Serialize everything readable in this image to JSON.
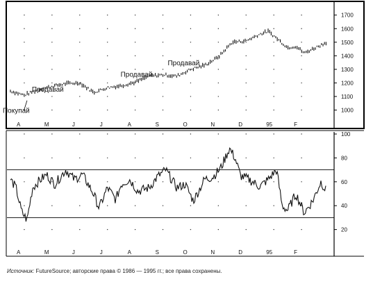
{
  "chart_data": [
    {
      "type": "bar",
      "style": "price-bars",
      "y_ticks": [
        "1700",
        "1600",
        "1500",
        "1400",
        "1300",
        "1200",
        "1100",
        "1000"
      ],
      "y_tick_values": [
        1700,
        1600,
        1500,
        1400,
        1300,
        1200,
        1100,
        1000
      ],
      "ylim": [
        900,
        1760
      ],
      "x_labels": [
        "A",
        "M",
        "J",
        "J",
        "A",
        "S",
        "O",
        "N",
        "D",
        "95",
        "F"
      ],
      "annotations": [
        {
          "text": "Продавай",
          "x": 1.4,
          "y": 1135
        },
        {
          "text": "Продавай",
          "x": 4.6,
          "y": 1245
        },
        {
          "text": "Продавай",
          "x": 6.3,
          "y": 1330
        },
        {
          "text": "Покупай",
          "x": 0.35,
          "y": 980
        }
      ],
      "x": [
        0.0,
        0.5,
        1.0,
        1.5,
        2.0,
        2.5,
        3.0,
        3.5,
        4.0,
        4.5,
        5.0,
        5.5,
        6.0,
        6.5,
        7.0,
        7.5,
        8.0,
        8.5,
        9.0,
        9.3,
        9.6,
        10.0,
        10.3,
        10.6,
        11.0,
        11.4
      ],
      "values": [
        1140,
        1110,
        1150,
        1175,
        1195,
        1200,
        1130,
        1165,
        1180,
        1205,
        1250,
        1260,
        1250,
        1300,
        1330,
        1390,
        1500,
        1510,
        1560,
        1580,
        1530,
        1460,
        1470,
        1420,
        1460,
        1500
      ]
    },
    {
      "type": "line",
      "y_ticks": [
        "100",
        "80",
        "60",
        "40",
        "20"
      ],
      "y_tick_values": [
        100,
        80,
        60,
        40,
        20
      ],
      "ylim": [
        0,
        100
      ],
      "reference_lines": [
        70,
        30
      ],
      "x_labels": [
        "A",
        "M",
        "J",
        "J",
        "A",
        "S",
        "O",
        "N",
        "D",
        "95",
        "F"
      ],
      "x": [
        0.0,
        0.2,
        0.4,
        0.6,
        0.8,
        1.0,
        1.3,
        1.6,
        2.0,
        2.3,
        2.6,
        3.0,
        3.2,
        3.5,
        3.8,
        4.0,
        4.3,
        4.6,
        5.0,
        5.3,
        5.6,
        6.0,
        6.3,
        6.6,
        7.0,
        7.3,
        7.6,
        7.9,
        8.1,
        8.3,
        8.6,
        9.0,
        9.3,
        9.6,
        9.8,
        10.0,
        10.3,
        10.6,
        10.9,
        11.2,
        11.4
      ],
      "values": [
        62,
        55,
        35,
        28,
        55,
        60,
        66,
        58,
        70,
        62,
        66,
        50,
        38,
        55,
        45,
        58,
        62,
        52,
        55,
        64,
        70,
        55,
        58,
        44,
        62,
        64,
        72,
        88,
        80,
        65,
        62,
        56,
        62,
        70,
        40,
        36,
        50,
        34,
        44,
        60,
        52
      ]
    }
  ],
  "caption": {
    "source_label": "Источник:",
    "text": " FutureSource; авторские права © 1986 — 1995 гг.; все права сохранены."
  }
}
